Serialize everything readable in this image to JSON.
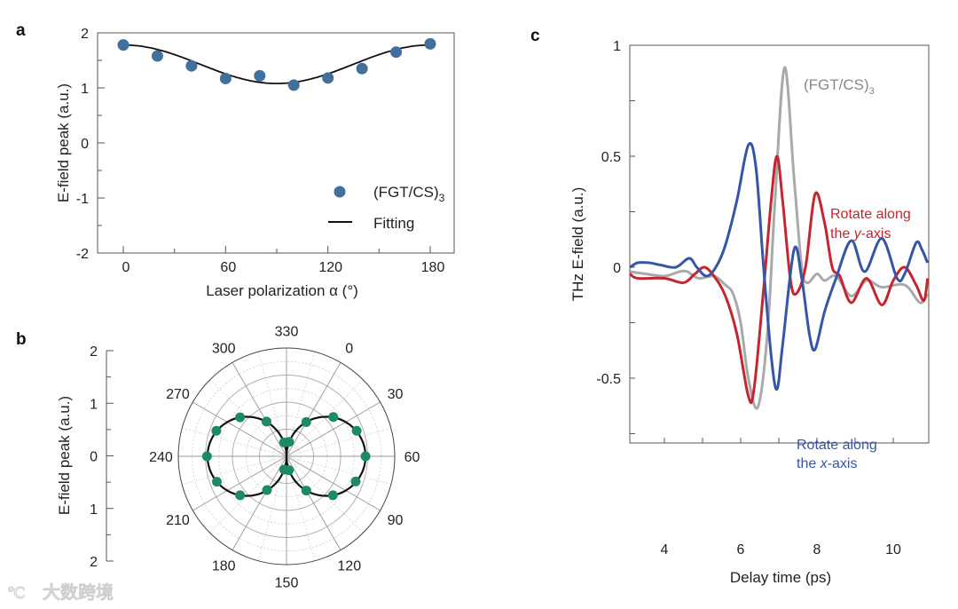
{
  "chart_data": [
    {
      "panel": "a",
      "type": "scatter",
      "xlabel": "Laser polarization α (°)",
      "ylabel": "E-field peak (a.u.)",
      "xlim": [
        -15,
        195
      ],
      "ylim": [
        -2,
        2
      ],
      "xticks": [
        0,
        60,
        120,
        180
      ],
      "yticks": [
        -2,
        -1,
        0,
        1,
        2
      ],
      "series": [
        {
          "name": "(FGT/CS)",
          "name_sub": "3",
          "kind": "points",
          "color": "#41709c",
          "x": [
            0,
            20,
            40,
            60,
            80,
            100,
            120,
            140,
            160,
            180
          ],
          "y": [
            1.78,
            1.58,
            1.4,
            1.17,
            1.22,
            1.05,
            1.18,
            1.35,
            1.65,
            1.8
          ]
        },
        {
          "name": "Fitting",
          "kind": "line",
          "color": "#111111",
          "model": "1.43 + 0.35*cos(2α)"
        }
      ],
      "legend": "bottom-right"
    },
    {
      "panel": "b",
      "type": "polar",
      "ylabel": "E-field peak (a.u.)",
      "radial_ticks": [
        "2",
        "1",
        "0",
        "1",
        "2"
      ],
      "rmax": 2,
      "angle_labels": [
        0,
        30,
        60,
        90,
        120,
        150,
        180,
        210,
        240,
        270,
        300,
        330
      ],
      "series": [
        {
          "name": "data",
          "kind": "points",
          "color": "#1b8a68",
          "theta": [
            0,
            20,
            40,
            60,
            80,
            100,
            120,
            140,
            160,
            180,
            200,
            220,
            240,
            260,
            280,
            300,
            320,
            340
          ],
          "r": [
            0.73,
            1.13,
            1.38,
            1.46,
            1.36,
            1.12,
            0.73,
            0.26,
            0.25,
            0.72,
            1.12,
            1.37,
            1.47,
            1.38,
            1.12,
            0.74,
            0.26,
            0.27
          ]
        },
        {
          "name": "fit",
          "kind": "line",
          "color": "#111111",
          "model": "1.46*|cos(θ-60°)|"
        }
      ]
    },
    {
      "panel": "c",
      "type": "line",
      "xlabel": "Delay time (ps)",
      "ylabel": "THz E-field (a.u.)",
      "xlim": [
        3.1,
        10.9
      ],
      "ylim": [
        -0.79,
        1
      ],
      "xticks": [
        4,
        6,
        8,
        10
      ],
      "yticks": [
        {
          "v": 1,
          "label": "1"
        },
        {
          "v": 0.5,
          "label": "0.5"
        },
        {
          "v": 0,
          "label": "0"
        },
        {
          "v": -0.5,
          "label": "-0.5"
        }
      ],
      "series": [
        {
          "name": "(FGT/CS)",
          "name_sub": "3",
          "color": "#a9a9a9",
          "x": [
            3.1,
            3.5,
            4.0,
            4.4,
            4.6,
            4.9,
            5.3,
            5.6,
            5.8,
            6.0,
            6.2,
            6.45,
            6.7,
            6.9,
            7.15,
            7.4,
            7.6,
            7.75,
            8.0,
            8.2,
            8.5,
            8.9,
            9.3,
            9.7,
            10.3,
            10.7,
            10.9
          ],
          "y": [
            -0.02,
            -0.03,
            -0.04,
            -0.02,
            -0.02,
            -0.05,
            -0.04,
            -0.08,
            -0.12,
            -0.25,
            -0.5,
            -0.63,
            -0.3,
            0.3,
            0.9,
            0.4,
            0.0,
            -0.07,
            -0.03,
            -0.06,
            -0.04,
            -0.13,
            -0.06,
            -0.09,
            -0.08,
            -0.16,
            -0.12
          ]
        },
        {
          "name": "Rotate along the y-axis",
          "color": "#c4252f",
          "x": [
            3.1,
            3.3,
            4.0,
            4.5,
            4.8,
            5.05,
            5.3,
            5.6,
            5.9,
            6.2,
            6.35,
            6.6,
            6.8,
            6.95,
            7.1,
            7.3,
            7.45,
            7.7,
            7.95,
            8.2,
            8.4,
            8.6,
            8.9,
            9.3,
            9.7,
            10.0,
            10.3,
            10.6,
            10.8,
            10.9
          ],
          "y": [
            -0.03,
            -0.05,
            -0.05,
            -0.07,
            -0.03,
            0.0,
            -0.04,
            -0.13,
            -0.3,
            -0.58,
            -0.55,
            -0.1,
            0.3,
            0.5,
            0.3,
            -0.05,
            -0.12,
            0.0,
            0.33,
            0.2,
            0.0,
            -0.04,
            -0.16,
            -0.05,
            -0.17,
            -0.06,
            0.0,
            -0.08,
            -0.15,
            -0.05
          ]
        },
        {
          "name": "Rotate along the x-axis",
          "color": "#3556a6",
          "x": [
            3.1,
            3.3,
            3.6,
            3.9,
            4.3,
            4.65,
            4.85,
            5.1,
            5.35,
            5.6,
            5.9,
            6.2,
            6.4,
            6.6,
            6.8,
            6.95,
            7.1,
            7.4,
            7.6,
            7.8,
            7.95,
            8.2,
            8.5,
            8.9,
            9.25,
            9.7,
            10.1,
            10.3,
            10.6,
            10.75,
            10.9
          ],
          "y": [
            0.0,
            0.02,
            0.02,
            0.01,
            0.0,
            0.04,
            0.0,
            -0.04,
            0.0,
            0.1,
            0.3,
            0.55,
            0.45,
            0.0,
            -0.4,
            -0.55,
            -0.35,
            0.08,
            -0.05,
            -0.3,
            -0.37,
            -0.2,
            -0.05,
            0.12,
            -0.02,
            0.13,
            -0.05,
            -0.03,
            0.11,
            0.08,
            0.02
          ]
        }
      ],
      "annotations": [
        {
          "main": "(FGT/CS)",
          "sub": "3",
          "color": "#888888"
        },
        {
          "line1": "Rotate along",
          "line2_pre": "the ",
          "line2_italic": "y",
          "line2_post": "-axis",
          "color": "#c4252f"
        },
        {
          "line1": "Rotate along",
          "line2_pre": "the ",
          "line2_italic": "x",
          "line2_post": "-axis",
          "color": "#3556a6"
        }
      ]
    }
  ],
  "panel_labels": [
    "a",
    "b",
    "c"
  ],
  "watermark": "大数跨境"
}
